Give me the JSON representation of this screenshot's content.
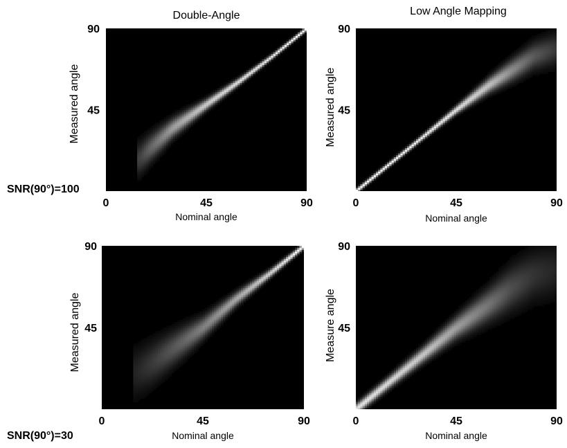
{
  "figure": {
    "column_titles": [
      "Double-Angle",
      "Low Angle Mapping"
    ],
    "row_labels": [
      "SNR(90°)=100",
      "SNR(90°)=30"
    ]
  },
  "chart_data": [
    {
      "type": "heatmap",
      "title": "Double-Angle",
      "row_label": "SNR(90°)=100",
      "xlabel": "Nominal angle",
      "ylabel": "Measured angle",
      "xlim": [
        0,
        90
      ],
      "ylim": [
        0,
        90
      ],
      "xticks": [
        0,
        45,
        90
      ],
      "yticks": [
        45,
        90
      ],
      "colormap": "gray",
      "grid": false,
      "ridge": [
        {
          "x": 15,
          "y": 18,
          "intensity": 0.25,
          "spread": 6
        },
        {
          "x": 20,
          "y": 24,
          "intensity": 0.4,
          "spread": 5
        },
        {
          "x": 30,
          "y": 35,
          "intensity": 0.62,
          "spread": 3.5
        },
        {
          "x": 45,
          "y": 48,
          "intensity": 0.8,
          "spread": 2
        },
        {
          "x": 60,
          "y": 61,
          "intensity": 0.88,
          "spread": 1.3
        },
        {
          "x": 75,
          "y": 75,
          "intensity": 0.93,
          "spread": 0.9
        },
        {
          "x": 90,
          "y": 90,
          "intensity": 1.0,
          "spread": 0.8
        }
      ]
    },
    {
      "type": "heatmap",
      "title": "Low Angle Mapping",
      "row_label": "SNR(90°)=100",
      "xlabel": "Nominal angle",
      "ylabel": "Measured angle",
      "xlim": [
        0,
        90
      ],
      "ylim": [
        0,
        90
      ],
      "xticks": [
        0,
        45,
        90
      ],
      "yticks": [
        45,
        90
      ],
      "colormap": "gray",
      "grid": false,
      "ridge": [
        {
          "x": 0,
          "y": 0,
          "intensity": 1.0,
          "spread": 0.9
        },
        {
          "x": 15,
          "y": 15,
          "intensity": 0.97,
          "spread": 0.9
        },
        {
          "x": 30,
          "y": 30,
          "intensity": 0.94,
          "spread": 1.0
        },
        {
          "x": 45,
          "y": 45,
          "intensity": 0.88,
          "spread": 1.5
        },
        {
          "x": 60,
          "y": 59,
          "intensity": 0.75,
          "spread": 2.8
        },
        {
          "x": 70,
          "y": 67,
          "intensity": 0.55,
          "spread": 4
        },
        {
          "x": 80,
          "y": 75,
          "intensity": 0.35,
          "spread": 5
        },
        {
          "x": 90,
          "y": 79,
          "intensity": 0.22,
          "spread": 6
        }
      ]
    },
    {
      "type": "heatmap",
      "title": "",
      "row_label": "SNR(90°)=30",
      "xlabel": "Nominal angle",
      "ylabel": "Measured angle",
      "xlim": [
        0,
        90
      ],
      "ylim": [
        0,
        90
      ],
      "xticks": [
        0,
        45,
        90
      ],
      "yticks": [
        45,
        90
      ],
      "colormap": "gray",
      "grid": false,
      "ridge": [
        {
          "x": 15,
          "y": 20,
          "intensity": 0.14,
          "spread": 9
        },
        {
          "x": 22,
          "y": 25,
          "intensity": 0.22,
          "spread": 8
        },
        {
          "x": 30,
          "y": 32,
          "intensity": 0.32,
          "spread": 6.5
        },
        {
          "x": 45,
          "y": 45,
          "intensity": 0.5,
          "spread": 4
        },
        {
          "x": 60,
          "y": 61,
          "intensity": 0.66,
          "spread": 2.5
        },
        {
          "x": 75,
          "y": 75,
          "intensity": 0.82,
          "spread": 1.5
        },
        {
          "x": 90,
          "y": 90,
          "intensity": 1.0,
          "spread": 1.0
        }
      ]
    },
    {
      "type": "heatmap",
      "title": "",
      "row_label": "SNR(90°)=30",
      "xlabel": "Nominal angle",
      "ylabel": "Measure angle",
      "xlim": [
        0,
        90
      ],
      "ylim": [
        0,
        90
      ],
      "xticks": [
        0,
        45,
        90
      ],
      "yticks": [
        45,
        90
      ],
      "colormap": "gray",
      "grid": false,
      "ridge": [
        {
          "x": 0,
          "y": 0,
          "intensity": 0.9,
          "spread": 2
        },
        {
          "x": 15,
          "y": 15,
          "intensity": 0.85,
          "spread": 2.2
        },
        {
          "x": 30,
          "y": 30,
          "intensity": 0.78,
          "spread": 2.8
        },
        {
          "x": 45,
          "y": 45,
          "intensity": 0.62,
          "spread": 4
        },
        {
          "x": 60,
          "y": 58,
          "intensity": 0.45,
          "spread": 6
        },
        {
          "x": 70,
          "y": 67,
          "intensity": 0.3,
          "spread": 8
        },
        {
          "x": 80,
          "y": 74,
          "intensity": 0.2,
          "spread": 9
        },
        {
          "x": 90,
          "y": 77,
          "intensity": 0.14,
          "spread": 10
        }
      ]
    }
  ]
}
